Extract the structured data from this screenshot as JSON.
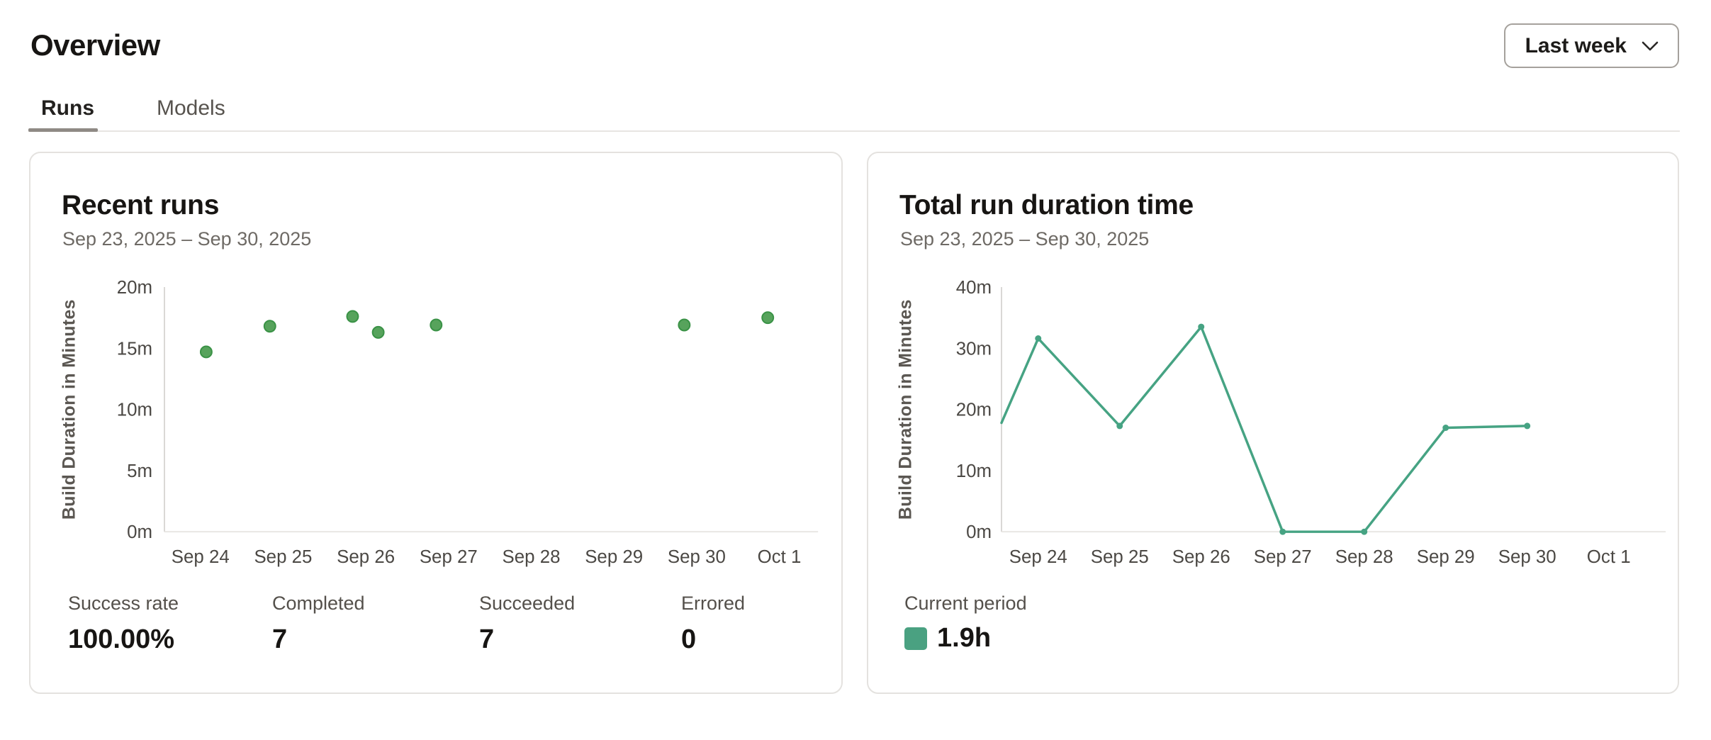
{
  "page": {
    "title": "Overview"
  },
  "period_selector": {
    "label": "Last week"
  },
  "tabs": [
    {
      "label": "Runs",
      "active": true
    },
    {
      "label": "Models",
      "active": false
    }
  ],
  "cards": [
    {
      "title": "Recent runs",
      "date_range": "Sep 23, 2025 – Sep 30, 2025",
      "stats": [
        {
          "label": "Success rate",
          "value": "100.00%"
        },
        {
          "label": "Completed",
          "value": "7"
        },
        {
          "label": "Succeeded",
          "value": "7"
        },
        {
          "label": "Errored",
          "value": "0"
        }
      ]
    },
    {
      "title": "Total run duration time",
      "date_range": "Sep 23, 2025 – Sep 30, 2025",
      "legend": {
        "label": "Current period",
        "value": "1.9h"
      }
    }
  ],
  "chart_data": [
    {
      "type": "scatter",
      "title": "Recent runs",
      "ylabel": "Build Duration in Minutes",
      "xlabel": "",
      "categories": [
        "Sep 24",
        "Sep 25",
        "Sep 26",
        "Sep 27",
        "Sep 28",
        "Sep 29",
        "Sep 30",
        "Oct 1"
      ],
      "ylim": [
        0,
        20
      ],
      "y_tick_step": 5,
      "y_tick_suffix": "m",
      "grid": false,
      "point_color": "#57a35c",
      "point_stroke": "#3a9246",
      "points": [
        {
          "x": 24.07,
          "y": 14.7
        },
        {
          "x": 24.84,
          "y": 16.8
        },
        {
          "x": 25.84,
          "y": 17.6
        },
        {
          "x": 26.15,
          "y": 16.3
        },
        {
          "x": 26.85,
          "y": 16.9
        },
        {
          "x": 29.85,
          "y": 16.9
        },
        {
          "x": 30.86,
          "y": 17.5
        }
      ]
    },
    {
      "type": "line",
      "title": "Total run duration time",
      "ylabel": "Build Duration in Minutes",
      "xlabel": "",
      "categories": [
        "Sep 24",
        "Sep 25",
        "Sep 26",
        "Sep 27",
        "Sep 28",
        "Sep 29",
        "Sep 30",
        "Oct 1"
      ],
      "ylim": [
        0,
        40
      ],
      "y_tick_step": 10,
      "y_tick_suffix": "m",
      "grid": false,
      "line_color": "#46a383",
      "legend_label": "Current period",
      "total": "1.9h",
      "points": [
        {
          "x": 23.55,
          "y": 17.8,
          "marker": false,
          "note": "segment clipped at left axis"
        },
        {
          "x": 24,
          "y": 31.6,
          "marker": true
        },
        {
          "x": 25,
          "y": 17.3,
          "marker": true
        },
        {
          "x": 26,
          "y": 33.5,
          "marker": true
        },
        {
          "x": 27,
          "y": 0,
          "marker": true
        },
        {
          "x": 28,
          "y": 0,
          "marker": true
        },
        {
          "x": 29,
          "y": 17.0,
          "marker": true
        },
        {
          "x": 30,
          "y": 17.3,
          "marker": true
        }
      ]
    }
  ],
  "colors": {
    "scatter_green": "#57a35c",
    "line_teal": "#46a383",
    "legend_swatch": "#4aa181",
    "card_border": "#e4e2df",
    "axis_line": "#dad8d5"
  }
}
